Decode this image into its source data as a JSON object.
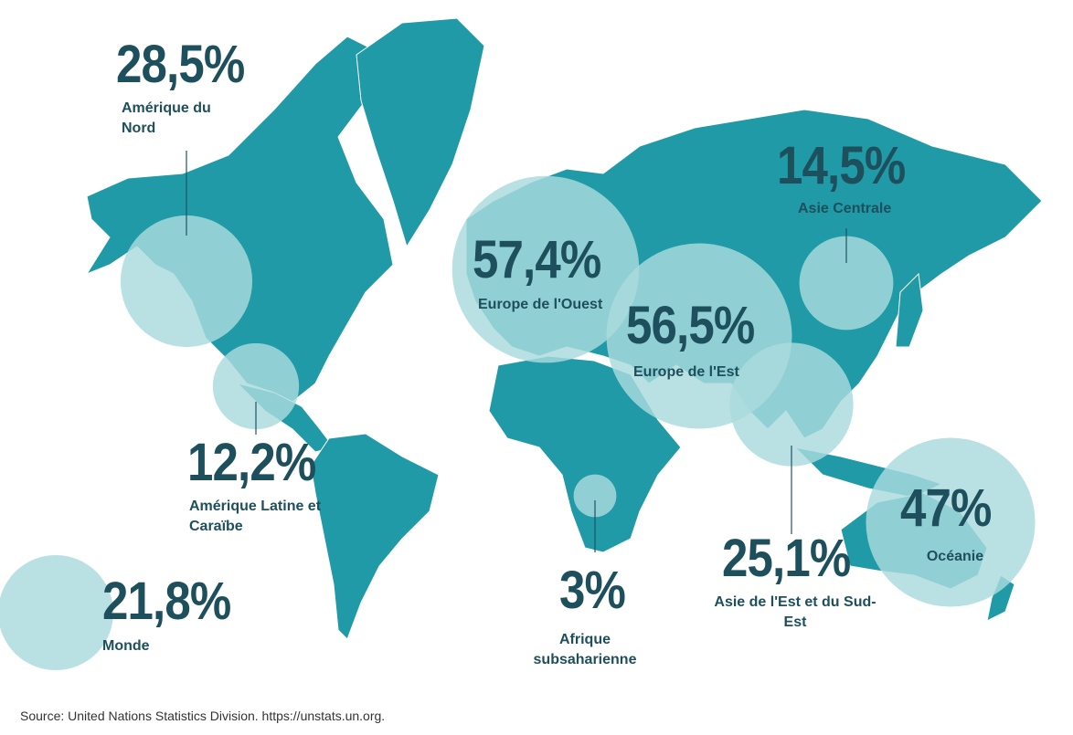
{
  "regions": [
    {
      "name": "Amérique du Nord",
      "value": 28.5,
      "value_label": "28,5%"
    },
    {
      "name": "Amérique Latine et Caraïbe",
      "value": 12.2,
      "value_label": "12,2%"
    },
    {
      "name": "Europe de l'Ouest",
      "value": 57.4,
      "value_label": "57,4%"
    },
    {
      "name": "Europe de l'Est",
      "value": 56.5,
      "value_label": "56,5%"
    },
    {
      "name": "Asie Centrale",
      "value": 14.5,
      "value_label": "14,5%"
    },
    {
      "name": "Asie de l'Est et du Sud-Est",
      "value": 25.1,
      "value_label": "25,1%"
    },
    {
      "name": "Océanie",
      "value": 47,
      "value_label": "47%"
    },
    {
      "name": "Afrique subsaharienne",
      "value": 3,
      "value_label": "3%"
    },
    {
      "name": "Monde",
      "value": 21.8,
      "value_label": "21,8%"
    }
  ],
  "source": "Source: United Nations Statistics Division. https://unstats.un.org."
}
